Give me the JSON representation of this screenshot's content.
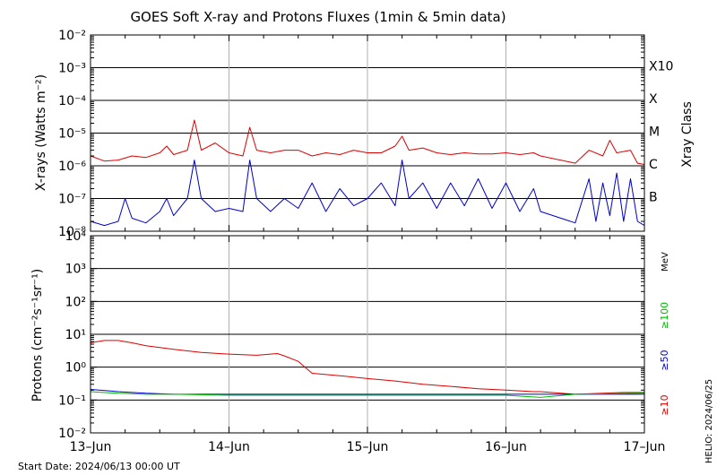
{
  "chart_data": [
    {
      "type": "line",
      "title": "GOES Soft X-ray and Protons Fluxes   (1min & 5min data)",
      "ylabel": "X-rays (Watts m⁻²)",
      "right_label": "Xray Class",
      "yscale": "log",
      "ylim": [
        1e-08,
        0.01
      ],
      "y_ticks": [
        {
          "label": "10⁻²",
          "value": 0.01
        },
        {
          "label": "10⁻³",
          "value": 0.001
        },
        {
          "label": "10⁻⁴",
          "value": 0.0001
        },
        {
          "label": "10⁻⁵",
          "value": 1e-05
        },
        {
          "label": "10⁻⁶",
          "value": 1e-06
        },
        {
          "label": "10⁻⁷",
          "value": 1e-07
        },
        {
          "label": "10⁻⁸",
          "value": 1e-08
        }
      ],
      "class_labels": [
        {
          "label": "X10",
          "value": 0.001
        },
        {
          "label": "X",
          "value": 0.0001
        },
        {
          "label": "M",
          "value": 1e-05
        },
        {
          "label": "C",
          "value": 1e-06
        },
        {
          "label": "B",
          "value": 1e-07
        }
      ],
      "series": [
        {
          "color": "#dd0000",
          "points": [
            [
              0.0,
              2e-06
            ],
            [
              0.1,
              1.4e-06
            ],
            [
              0.2,
              1.5e-06
            ],
            [
              0.3,
              2e-06
            ],
            [
              0.4,
              1.8e-06
            ],
            [
              0.5,
              2.5e-06
            ],
            [
              0.55,
              4e-06
            ],
            [
              0.6,
              2.2e-06
            ],
            [
              0.7,
              3e-06
            ],
            [
              0.75,
              2.5e-05
            ],
            [
              0.8,
              3e-06
            ],
            [
              0.9,
              5e-06
            ],
            [
              1.0,
              2.5e-06
            ],
            [
              1.1,
              2e-06
            ],
            [
              1.15,
              1.5e-05
            ],
            [
              1.2,
              3e-06
            ],
            [
              1.3,
              2.5e-06
            ],
            [
              1.4,
              3e-06
            ],
            [
              1.5,
              3e-06
            ],
            [
              1.6,
              2e-06
            ],
            [
              1.7,
              2.5e-06
            ],
            [
              1.8,
              2.2e-06
            ],
            [
              1.9,
              3e-06
            ],
            [
              2.0,
              2.5e-06
            ],
            [
              2.1,
              2.5e-06
            ],
            [
              2.2,
              4e-06
            ],
            [
              2.25,
              8e-06
            ],
            [
              2.3,
              3e-06
            ],
            [
              2.4,
              3.5e-06
            ],
            [
              2.5,
              2.5e-06
            ],
            [
              2.6,
              2.2e-06
            ],
            [
              2.7,
              2.5e-06
            ],
            [
              2.8,
              2.3e-06
            ],
            [
              2.9,
              2.3e-06
            ],
            [
              3.0,
              2.5e-06
            ],
            [
              3.1,
              2.2e-06
            ],
            [
              3.2,
              2.5e-06
            ],
            [
              3.25,
              2e-06
            ],
            [
              3.5,
              1.2e-06
            ],
            [
              3.6,
              3e-06
            ],
            [
              3.7,
              2e-06
            ],
            [
              3.75,
              6e-06
            ],
            [
              3.8,
              2.5e-06
            ],
            [
              3.9,
              3e-06
            ],
            [
              3.95,
              1.2e-06
            ],
            [
              4.0,
              1.1e-06
            ]
          ]
        },
        {
          "color": "#0000cc",
          "points": [
            [
              0.0,
              2e-08
            ],
            [
              0.1,
              1.5e-08
            ],
            [
              0.2,
              2e-08
            ],
            [
              0.25,
              1e-07
            ],
            [
              0.3,
              2.5e-08
            ],
            [
              0.4,
              1.8e-08
            ],
            [
              0.5,
              4e-08
            ],
            [
              0.55,
              1e-07
            ],
            [
              0.6,
              3e-08
            ],
            [
              0.7,
              1e-07
            ],
            [
              0.75,
              1.5e-06
            ],
            [
              0.8,
              1e-07
            ],
            [
              0.9,
              4e-08
            ],
            [
              1.0,
              5e-08
            ],
            [
              1.1,
              4e-08
            ],
            [
              1.15,
              1.5e-06
            ],
            [
              1.2,
              1e-07
            ],
            [
              1.3,
              4e-08
            ],
            [
              1.4,
              1e-07
            ],
            [
              1.5,
              5e-08
            ],
            [
              1.6,
              3e-07
            ],
            [
              1.7,
              4e-08
            ],
            [
              1.8,
              2e-07
            ],
            [
              1.9,
              6e-08
            ],
            [
              2.0,
              1e-07
            ],
            [
              2.1,
              3e-07
            ],
            [
              2.2,
              6e-08
            ],
            [
              2.25,
              1.5e-06
            ],
            [
              2.3,
              1e-07
            ],
            [
              2.4,
              3e-07
            ],
            [
              2.5,
              5e-08
            ],
            [
              2.6,
              3e-07
            ],
            [
              2.7,
              6e-08
            ],
            [
              2.8,
              4e-07
            ],
            [
              2.9,
              5e-08
            ],
            [
              3.0,
              3e-07
            ],
            [
              3.1,
              4e-08
            ],
            [
              3.2,
              2e-07
            ],
            [
              3.25,
              4e-08
            ],
            [
              3.5,
              1.8e-08
            ],
            [
              3.6,
              4e-07
            ],
            [
              3.65,
              2e-08
            ],
            [
              3.7,
              3e-07
            ],
            [
              3.75,
              3e-08
            ],
            [
              3.8,
              6e-07
            ],
            [
              3.85,
              2e-08
            ],
            [
              3.9,
              4e-07
            ],
            [
              3.95,
              2e-08
            ],
            [
              4.0,
              1.5e-08
            ]
          ]
        }
      ]
    },
    {
      "type": "line",
      "ylabel": "Protons (cm⁻²s⁻¹sr⁻¹)",
      "yscale": "log",
      "ylim": [
        0.01,
        10000.0
      ],
      "threshold": 10,
      "y_ticks": [
        {
          "label": "10⁴",
          "value": 10000.0
        },
        {
          "label": "10³",
          "value": 1000.0
        },
        {
          "label": "10²",
          "value": 100.0
        },
        {
          "label": "10¹",
          "value": 10
        },
        {
          "label": "10⁰",
          "value": 1
        },
        {
          "label": "10⁻¹",
          "value": 0.1
        },
        {
          "label": "10⁻²",
          "value": 0.01
        }
      ],
      "legend": {
        "unit": "MeV",
        "entries": [
          {
            "label": "≥100",
            "color": "#00bb00"
          },
          {
            "label": "≥50",
            "color": "#0000cc"
          },
          {
            "label": "≥10",
            "color": "#dd0000"
          }
        ]
      },
      "series": [
        {
          "color": "#dd0000",
          "points": [
            [
              0.0,
              5.5
            ],
            [
              0.1,
              6.5
            ],
            [
              0.2,
              6.5
            ],
            [
              0.3,
              5.5
            ],
            [
              0.4,
              4.5
            ],
            [
              0.6,
              3.5
            ],
            [
              0.8,
              2.8
            ],
            [
              1.0,
              2.5
            ],
            [
              1.2,
              2.3
            ],
            [
              1.3,
              2.5
            ],
            [
              1.35,
              2.6
            ],
            [
              1.4,
              2.2
            ],
            [
              1.5,
              1.5
            ],
            [
              1.6,
              0.65
            ],
            [
              1.8,
              0.55
            ],
            [
              2.0,
              0.45
            ],
            [
              2.2,
              0.38
            ],
            [
              2.4,
              0.3
            ],
            [
              2.6,
              0.26
            ],
            [
              2.8,
              0.22
            ],
            [
              3.0,
              0.2
            ],
            [
              3.2,
              0.18
            ],
            [
              3.25,
              0.18
            ],
            [
              3.5,
              0.15
            ],
            [
              3.7,
              0.16
            ],
            [
              3.85,
              0.17
            ],
            [
              4.0,
              0.17
            ]
          ]
        },
        {
          "color": "#0000cc",
          "points": [
            [
              0.0,
              0.21
            ],
            [
              0.2,
              0.18
            ],
            [
              0.4,
              0.16
            ],
            [
              0.6,
              0.15
            ],
            [
              1.0,
              0.15
            ],
            [
              1.5,
              0.15
            ],
            [
              2.0,
              0.15
            ],
            [
              2.5,
              0.15
            ],
            [
              3.0,
              0.15
            ],
            [
              3.25,
              0.15
            ],
            [
              3.5,
              0.15
            ],
            [
              4.0,
              0.15
            ]
          ]
        },
        {
          "color": "#00bb00",
          "points": [
            [
              0.0,
              0.18
            ],
            [
              0.2,
              0.16
            ],
            [
              0.4,
              0.15
            ],
            [
              0.6,
              0.15
            ],
            [
              1.0,
              0.14
            ],
            [
              1.5,
              0.14
            ],
            [
              2.0,
              0.14
            ],
            [
              2.5,
              0.14
            ],
            [
              3.0,
              0.14
            ],
            [
              3.25,
              0.12
            ],
            [
              3.5,
              0.15
            ],
            [
              4.0,
              0.16
            ]
          ]
        }
      ]
    }
  ],
  "x_axis": {
    "ticks": [
      {
        "label": "13–Jun",
        "value": 0
      },
      {
        "label": "14–Jun",
        "value": 1
      },
      {
        "label": "15–Jun",
        "value": 2
      },
      {
        "label": "16–Jun",
        "value": 3
      },
      {
        "label": "17–Jun",
        "value": 4
      }
    ],
    "range": [
      0,
      4
    ]
  },
  "footer": {
    "start_date": "Start Date: 2024/06/13 00:00 UT",
    "credit": "HELIO: 2024/06/25"
  }
}
